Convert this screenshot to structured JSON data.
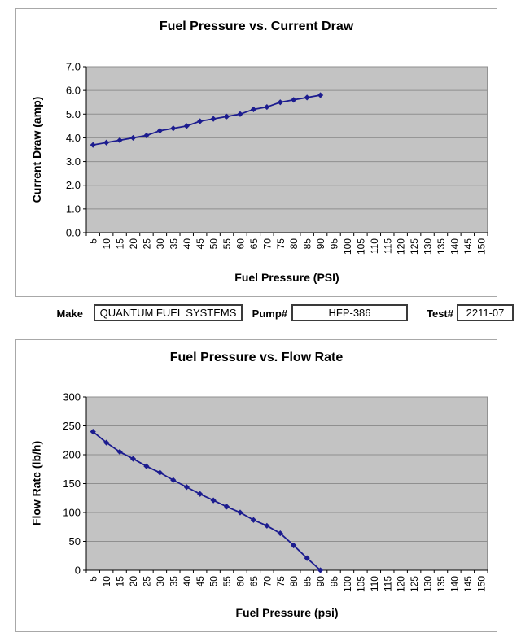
{
  "fields": {
    "make_label": "Make",
    "make_value": "QUANTUM FUEL SYSTEMS",
    "pump_label": "Pump#",
    "pump_value": "HFP-386",
    "test_label": "Test#",
    "test_value": "2211-07"
  },
  "chart_data": [
    {
      "type": "line",
      "title": "Fuel Pressure vs. Current Draw",
      "xlabel": "Fuel Pressure (PSI)",
      "ylabel": "Current Draw (amp)",
      "x_tick_labels": [
        5,
        10,
        15,
        20,
        25,
        30,
        35,
        40,
        45,
        50,
        55,
        60,
        65,
        70,
        75,
        80,
        85,
        90,
        95,
        100,
        105,
        110,
        115,
        120,
        125,
        130,
        135,
        140,
        145,
        150
      ],
      "x": [
        5,
        10,
        15,
        20,
        25,
        30,
        35,
        40,
        45,
        50,
        55,
        60,
        65,
        70,
        75,
        80,
        85,
        90
      ],
      "series": [
        {
          "name": "Current Draw (amp)",
          "values": [
            3.7,
            3.8,
            3.9,
            4.0,
            4.1,
            4.3,
            4.4,
            4.5,
            4.7,
            4.8,
            4.9,
            5.0,
            5.2,
            5.3,
            5.5,
            5.6,
            5.7,
            5.8
          ]
        }
      ],
      "ylim": [
        0,
        7
      ],
      "y_tick_labels": [
        "0.0",
        "1.0",
        "2.0",
        "3.0",
        "4.0",
        "5.0",
        "6.0",
        "7.0"
      ],
      "grid": true,
      "legend": "none",
      "marker": "diamond",
      "colors": {
        "line": "#1c1c8f",
        "plot_bg": "#c3c3c3",
        "gridline": "#8f8f8f",
        "plot_border": "#606060",
        "axis": "#000000"
      }
    },
    {
      "type": "line",
      "title": "Fuel Pressure vs. Flow Rate",
      "xlabel": "Fuel Pressure (psi)",
      "ylabel": "Flow Rate (lb/h)",
      "x_tick_labels": [
        5,
        10,
        15,
        20,
        25,
        30,
        35,
        40,
        45,
        50,
        55,
        60,
        65,
        70,
        75,
        80,
        85,
        90,
        95,
        100,
        105,
        110,
        115,
        120,
        125,
        130,
        135,
        140,
        145,
        150
      ],
      "x": [
        5,
        10,
        15,
        20,
        25,
        30,
        35,
        40,
        45,
        50,
        55,
        60,
        65,
        70,
        75,
        80,
        85,
        90
      ],
      "series": [
        {
          "name": "Flow Rate (lb/h)",
          "values": [
            240,
            221,
            205,
            193,
            180,
            169,
            156,
            144,
            132,
            121,
            110,
            100,
            87,
            77,
            64,
            43,
            21,
            0
          ]
        }
      ],
      "ylim": [
        0,
        300
      ],
      "y_tick_labels": [
        "0",
        "50",
        "100",
        "150",
        "200",
        "250",
        "300"
      ],
      "grid": true,
      "legend": "none",
      "marker": "diamond",
      "colors": {
        "line": "#1c1c8f",
        "plot_bg": "#c3c3c3",
        "gridline": "#8f8f8f",
        "plot_border": "#606060",
        "axis": "#000000"
      }
    }
  ]
}
